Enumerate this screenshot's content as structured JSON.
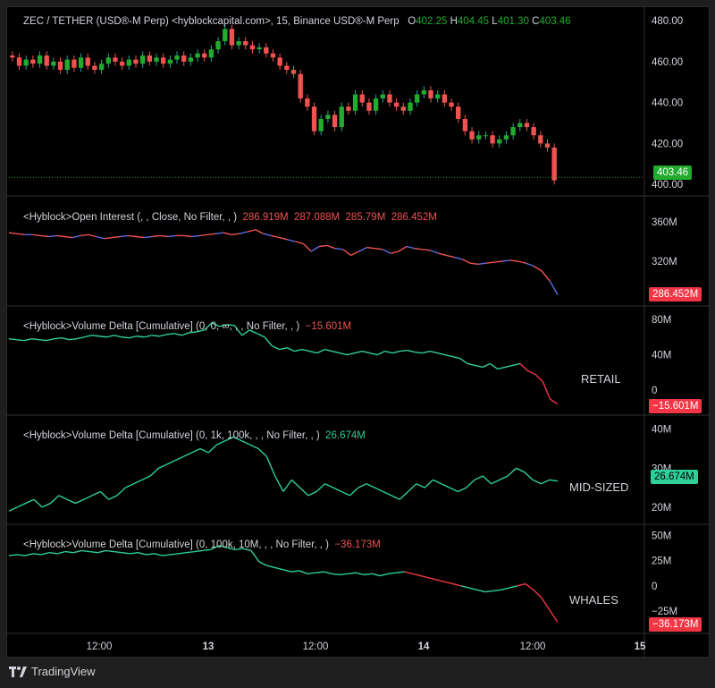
{
  "legends": {
    "price": {
      "title": "ZEC / TETHER (USD®-M Perp) <hyblockcapital.com>, 15, Binance USD®-M Perp",
      "o_label": "O",
      "o": "402.25",
      "h_label": "H",
      "h": "404.45",
      "l_label": "L",
      "l": "401.30",
      "c_label": "C",
      "c": "403.46"
    },
    "oi": {
      "title": "<Hyblock>Open Interest (, , Close, No Filter, , )",
      "v1": "286.919M",
      "v2": "287.088M",
      "v3": "285.79M",
      "v4": "286.452M"
    },
    "retail": {
      "title": "<Hyblock>Volume Delta [Cumulative] (0, 0, ∞, , , No Filter, , )",
      "value": "−15.601M"
    },
    "mid": {
      "title": "<Hyblock>Volume Delta [Cumulative] (0, 1k, 100k, , , No Filter, , )",
      "value": "26.674M"
    },
    "whales": {
      "title": "<Hyblock>Volume Delta [Cumulative] (0, 100k, 10M, , , No Filter, , )",
      "value": "−36.173M"
    }
  },
  "pane_labels": {
    "retail": "RETAIL",
    "mid": "MID-SIZED",
    "whales": "WHALES"
  },
  "last_tags": {
    "price": "403.46",
    "oi": "286.452M",
    "retail": "−15.601M",
    "mid": "26.674M",
    "whales": "−36.173M"
  },
  "footer": {
    "brand": "TradingView"
  },
  "colors": {
    "up": "#26a69a",
    "down": "#ef5350",
    "green_line": "#2ecf9a",
    "red": "#f23645",
    "price_tag": "#22ab2c",
    "oi_blue": "#5b6ee1",
    "axis_text": "#d1d4dc",
    "grid": "#2a2a2a"
  },
  "chart_data": [
    {
      "pane": "price",
      "type": "candlestick",
      "y_ticks": [
        400,
        420,
        440,
        460,
        480
      ],
      "ylim": [
        397,
        484
      ],
      "last": 403.46,
      "close_path": [
        462,
        458,
        461,
        459,
        463,
        458,
        460,
        456,
        461,
        457,
        462,
        458,
        456,
        459,
        462,
        460,
        458,
        461,
        459,
        463,
        460,
        462,
        459,
        461,
        463,
        460,
        462,
        464,
        462,
        466,
        470,
        476,
        468,
        470,
        468,
        466,
        467,
        464,
        462,
        458,
        456,
        454,
        442,
        438,
        426,
        432,
        434,
        428,
        438,
        436,
        444,
        440,
        436,
        442,
        444,
        440,
        438,
        436,
        440,
        444,
        446,
        442,
        444,
        440,
        438,
        432,
        426,
        422,
        424,
        424,
        420,
        422,
        424,
        428,
        430,
        428,
        424,
        420,
        418,
        402
      ]
    },
    {
      "pane": "open_interest",
      "type": "line",
      "y_ticks": [
        "320M",
        "360M"
      ],
      "ylim": [
        280,
        380
      ],
      "last": 286.452,
      "values": [
        349,
        348,
        347,
        347,
        346,
        345,
        346,
        345,
        344,
        346,
        347,
        345,
        343,
        344,
        345,
        346,
        345,
        344,
        345,
        346,
        345,
        346,
        346,
        345,
        346,
        347,
        348,
        349,
        347,
        348,
        350,
        352,
        348,
        346,
        344,
        342,
        340,
        338,
        330,
        335,
        336,
        333,
        332,
        326,
        330,
        334,
        333,
        332,
        328,
        330,
        335,
        333,
        332,
        331,
        328,
        326,
        324,
        322,
        318,
        317,
        318,
        319,
        320,
        321,
        320,
        318,
        315,
        310,
        300,
        286
      ]
    },
    {
      "pane": "retail",
      "type": "line",
      "label": "RETAIL",
      "y_ticks": [
        "0",
        "40M",
        "80M"
      ],
      "ylim": [
        -22,
        88
      ],
      "last": -15.601,
      "values": [
        58,
        57,
        56,
        58,
        57,
        56,
        58,
        59,
        57,
        58,
        60,
        62,
        61,
        60,
        62,
        60,
        59,
        61,
        60,
        62,
        61,
        63,
        64,
        62,
        65,
        66,
        68,
        76,
        72,
        74,
        73,
        62,
        68,
        64,
        60,
        50,
        46,
        48,
        44,
        46,
        44,
        42,
        46,
        44,
        42,
        40,
        42,
        44,
        42,
        40,
        44,
        42,
        44,
        45,
        43,
        42,
        44,
        42,
        40,
        38,
        36,
        30,
        28,
        26,
        30,
        24,
        26,
        28,
        30,
        22,
        18,
        10,
        -10,
        -15.6
      ]
    },
    {
      "pane": "mid_sized",
      "type": "line",
      "label": "MID-SIZED",
      "y_ticks": [
        "20M",
        "30M",
        "40M"
      ],
      "ylim": [
        17,
        42
      ],
      "last": 26.674,
      "values": [
        19,
        20,
        21,
        22,
        20,
        21,
        23,
        22,
        21,
        22,
        23,
        24,
        22,
        23,
        25,
        26,
        27,
        28,
        30,
        31,
        32,
        33,
        34,
        35,
        34,
        36,
        37,
        38,
        37,
        36,
        35,
        33,
        28,
        24,
        27,
        25,
        23,
        24,
        26,
        25,
        24,
        23,
        25,
        26,
        25,
        24,
        23,
        22,
        24,
        26,
        25,
        27,
        26,
        25,
        24,
        25,
        27,
        28,
        26,
        27,
        28,
        30,
        29,
        27,
        26,
        27,
        26.7
      ]
    },
    {
      "pane": "whales",
      "type": "line",
      "label": "WHALES",
      "y_ticks": [
        "−25M",
        "0",
        "25M",
        "50M"
      ],
      "ylim": [
        -42,
        55
      ],
      "last": -36.173,
      "values": [
        30,
        31,
        30,
        32,
        31,
        33,
        32,
        34,
        33,
        35,
        34,
        33,
        35,
        34,
        33,
        32,
        33,
        31,
        32,
        30,
        31,
        32,
        33,
        34,
        35,
        36,
        40,
        38,
        36,
        37,
        35,
        24,
        20,
        18,
        16,
        14,
        15,
        12,
        13,
        14,
        12,
        11,
        12,
        13,
        11,
        12,
        10,
        12,
        13,
        14,
        12,
        10,
        8,
        6,
        4,
        2,
        0,
        -2,
        -4,
        -6,
        -5,
        -4,
        -2,
        0,
        2,
        -4,
        -12,
        -24,
        -36.2
      ]
    }
  ],
  "x_axis": {
    "ticks": [
      "12:00",
      "13",
      "12:00",
      "14",
      "12:00",
      "15"
    ]
  }
}
